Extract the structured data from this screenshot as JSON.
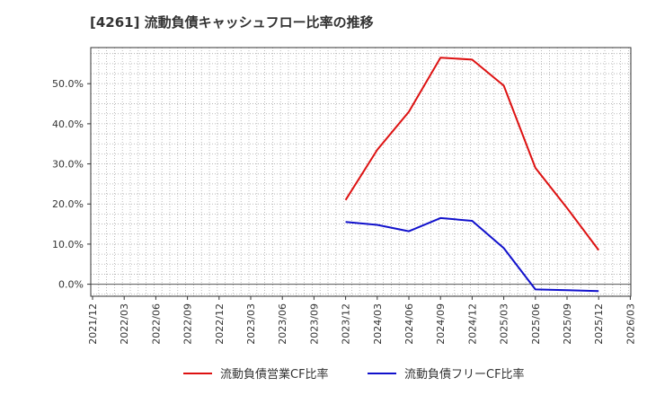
{
  "chart_data": {
    "type": "line",
    "title": "[4261]  流動負債キャッシュフロー比率の推移",
    "xlabel": "",
    "ylabel": "",
    "x_ticks": [
      "2021/12",
      "2022/03",
      "2022/06",
      "2022/09",
      "2022/12",
      "2023/03",
      "2023/06",
      "2023/09",
      "2023/12",
      "2024/03",
      "2024/06",
      "2024/09",
      "2024/12",
      "2025/03",
      "2025/06",
      "2025/09",
      "2025/12",
      "2026/03"
    ],
    "y_ticks": [
      0,
      10,
      20,
      30,
      40,
      50
    ],
    "y_tick_labels": [
      "0.0%",
      "10.0%",
      "20.0%",
      "30.0%",
      "40.0%",
      "50.0%"
    ],
    "ylim": [
      -3,
      59
    ],
    "grid": true,
    "legend_position": "bottom",
    "series": [
      {
        "name": "流動負債営業CF比率",
        "color": "#dd1111",
        "x": [
          "2023/12",
          "2024/03",
          "2024/06",
          "2024/09",
          "2024/12",
          "2025/03",
          "2025/06",
          "2025/09",
          "2025/12"
        ],
        "values": [
          21.0,
          33.5,
          43.0,
          56.5,
          56.0,
          49.5,
          29.0,
          19.0,
          8.5
        ]
      },
      {
        "name": "流動負債フリーCF比率",
        "color": "#1111cc",
        "x": [
          "2023/12",
          "2024/03",
          "2024/06",
          "2024/09",
          "2024/12",
          "2025/03",
          "2025/06",
          "2025/09",
          "2025/12"
        ],
        "values": [
          15.5,
          14.8,
          13.2,
          16.5,
          15.8,
          9.0,
          -1.3,
          -1.5,
          -1.7
        ]
      }
    ]
  }
}
